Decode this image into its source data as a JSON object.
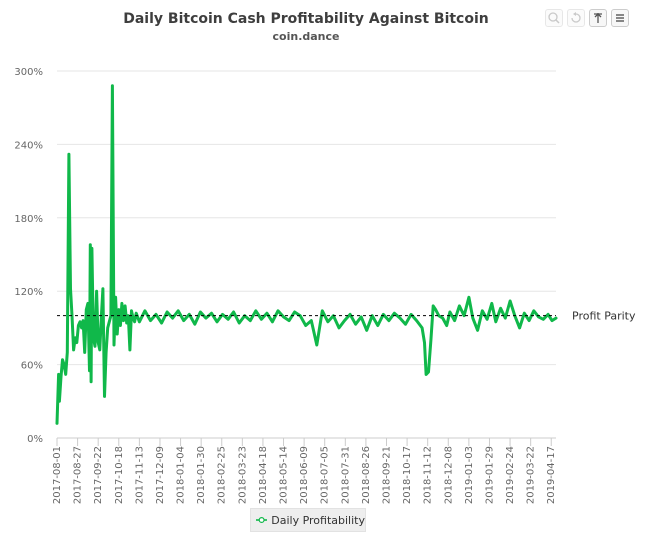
{
  "header": {
    "title": "Daily Bitcoin Cash Profitability Against Bitcoin",
    "subtitle": "coin.dance"
  },
  "toolbar": {
    "buttons": [
      {
        "icon": "zoom-in-icon",
        "enabled": false
      },
      {
        "icon": "reset-zoom-icon",
        "enabled": false
      },
      {
        "icon": "pan-icon",
        "enabled": true
      },
      {
        "icon": "menu-icon",
        "enabled": true
      }
    ]
  },
  "legend": {
    "label": "Daily Profitability",
    "color": "#10b84a"
  },
  "chart_data": {
    "type": "line",
    "title": "Daily Bitcoin Cash Profitability Against Bitcoin",
    "subtitle": "coin.dance",
    "xlabel": "",
    "ylabel": "",
    "ylim": [
      0,
      300
    ],
    "y_ticks": [
      0,
      60,
      120,
      180,
      240,
      300
    ],
    "y_tick_labels": [
      "0%",
      "60%",
      "120%",
      "180%",
      "240%",
      "300%"
    ],
    "x_ticks": [
      "2017-08-01",
      "2017-08-27",
      "2017-09-22",
      "2017-10-18",
      "2017-11-13",
      "2017-12-09",
      "2018-01-04",
      "2018-01-30",
      "2018-02-25",
      "2018-03-23",
      "2018-04-18",
      "2018-05-14",
      "2018-06-09",
      "2018-07-05",
      "2018-07-31",
      "2018-08-26",
      "2018-09-21",
      "2018-10-17",
      "2018-11-12",
      "2018-12-08",
      "2019-01-03",
      "2019-01-29",
      "2019-02-24",
      "2019-03-22",
      "2019-04-17"
    ],
    "x_start": "2017-08-01",
    "x_end": "2019-04-23",
    "grid": true,
    "legend_position": "bottom-center",
    "plot_line": {
      "value": 100,
      "label": "Profit Parity",
      "style": "dashed"
    },
    "series": [
      {
        "name": "Daily Profitability",
        "color": "#10b84a",
        "points": [
          [
            "2017-08-01",
            12
          ],
          [
            "2017-08-03",
            52
          ],
          [
            "2017-08-04",
            30
          ],
          [
            "2017-08-06",
            50
          ],
          [
            "2017-08-08",
            64
          ],
          [
            "2017-08-10",
            60
          ],
          [
            "2017-08-12",
            52
          ],
          [
            "2017-08-14",
            70
          ],
          [
            "2017-08-16",
            232
          ],
          [
            "2017-08-18",
            122
          ],
          [
            "2017-08-20",
            100
          ],
          [
            "2017-08-22",
            72
          ],
          [
            "2017-08-24",
            82
          ],
          [
            "2017-08-26",
            78
          ],
          [
            "2017-08-28",
            92
          ],
          [
            "2017-08-30",
            95
          ],
          [
            "2017-09-01",
            90
          ],
          [
            "2017-09-03",
            96
          ],
          [
            "2017-09-05",
            70
          ],
          [
            "2017-09-07",
            105
          ],
          [
            "2017-09-09",
            110
          ],
          [
            "2017-09-11",
            55
          ],
          [
            "2017-09-12",
            158
          ],
          [
            "2017-09-13",
            46
          ],
          [
            "2017-09-14",
            155
          ],
          [
            "2017-09-16",
            82
          ],
          [
            "2017-09-18",
            75
          ],
          [
            "2017-09-20",
            120
          ],
          [
            "2017-09-22",
            78
          ],
          [
            "2017-09-24",
            72
          ],
          [
            "2017-09-26",
            100
          ],
          [
            "2017-09-28",
            122
          ],
          [
            "2017-09-30",
            34
          ],
          [
            "2017-10-02",
            70
          ],
          [
            "2017-10-04",
            90
          ],
          [
            "2017-10-06",
            95
          ],
          [
            "2017-10-08",
            100
          ],
          [
            "2017-10-10",
            288
          ],
          [
            "2017-10-12",
            76
          ],
          [
            "2017-10-14",
            115
          ],
          [
            "2017-10-16",
            85
          ],
          [
            "2017-10-18",
            105
          ],
          [
            "2017-10-20",
            92
          ],
          [
            "2017-10-22",
            110
          ],
          [
            "2017-10-24",
            96
          ],
          [
            "2017-10-26",
            108
          ],
          [
            "2017-10-28",
            94
          ],
          [
            "2017-10-30",
            100
          ],
          [
            "2017-11-01",
            72
          ],
          [
            "2017-11-03",
            104
          ],
          [
            "2017-11-05",
            98
          ],
          [
            "2017-11-07",
            95
          ],
          [
            "2017-11-09",
            102
          ],
          [
            "2017-11-13",
            95
          ],
          [
            "2017-11-20",
            104
          ],
          [
            "2017-11-27",
            96
          ],
          [
            "2017-12-04",
            101
          ],
          [
            "2017-12-11",
            94
          ],
          [
            "2017-12-18",
            103
          ],
          [
            "2017-12-25",
            98
          ],
          [
            "2018-01-01",
            104
          ],
          [
            "2018-01-08",
            96
          ],
          [
            "2018-01-15",
            101
          ],
          [
            "2018-01-22",
            93
          ],
          [
            "2018-01-29",
            103
          ],
          [
            "2018-02-05",
            98
          ],
          [
            "2018-02-12",
            102
          ],
          [
            "2018-02-19",
            95
          ],
          [
            "2018-02-26",
            101
          ],
          [
            "2018-03-05",
            97
          ],
          [
            "2018-03-12",
            103
          ],
          [
            "2018-03-19",
            94
          ],
          [
            "2018-03-26",
            100
          ],
          [
            "2018-04-02",
            96
          ],
          [
            "2018-04-09",
            104
          ],
          [
            "2018-04-16",
            97
          ],
          [
            "2018-04-23",
            102
          ],
          [
            "2018-04-30",
            95
          ],
          [
            "2018-05-07",
            104
          ],
          [
            "2018-05-14",
            99
          ],
          [
            "2018-05-21",
            96
          ],
          [
            "2018-05-28",
            103
          ],
          [
            "2018-06-04",
            100
          ],
          [
            "2018-06-11",
            92
          ],
          [
            "2018-06-18",
            96
          ],
          [
            "2018-06-25",
            76
          ],
          [
            "2018-07-02",
            104
          ],
          [
            "2018-07-09",
            95
          ],
          [
            "2018-07-16",
            100
          ],
          [
            "2018-07-23",
            90
          ],
          [
            "2018-07-30",
            96
          ],
          [
            "2018-08-06",
            101
          ],
          [
            "2018-08-13",
            93
          ],
          [
            "2018-08-20",
            99
          ],
          [
            "2018-08-27",
            88
          ],
          [
            "2018-09-03",
            100
          ],
          [
            "2018-09-10",
            92
          ],
          [
            "2018-09-17",
            101
          ],
          [
            "2018-09-24",
            96
          ],
          [
            "2018-10-01",
            102
          ],
          [
            "2018-10-08",
            98
          ],
          [
            "2018-10-15",
            93
          ],
          [
            "2018-10-22",
            101
          ],
          [
            "2018-10-29",
            96
          ],
          [
            "2018-11-05",
            90
          ],
          [
            "2018-11-08",
            78
          ],
          [
            "2018-11-10",
            52
          ],
          [
            "2018-11-13",
            54
          ],
          [
            "2018-11-16",
            80
          ],
          [
            "2018-11-19",
            108
          ],
          [
            "2018-11-22",
            105
          ],
          [
            "2018-11-26",
            100
          ],
          [
            "2018-12-01",
            98
          ],
          [
            "2018-12-06",
            92
          ],
          [
            "2018-12-10",
            103
          ],
          [
            "2018-12-16",
            96
          ],
          [
            "2018-12-22",
            108
          ],
          [
            "2018-12-28",
            100
          ],
          [
            "2019-01-03",
            115
          ],
          [
            "2019-01-08",
            98
          ],
          [
            "2019-01-14",
            88
          ],
          [
            "2019-01-20",
            104
          ],
          [
            "2019-01-26",
            97
          ],
          [
            "2019-02-01",
            110
          ],
          [
            "2019-02-06",
            95
          ],
          [
            "2019-02-12",
            106
          ],
          [
            "2019-02-18",
            98
          ],
          [
            "2019-02-24",
            112
          ],
          [
            "2019-03-02",
            100
          ],
          [
            "2019-03-08",
            90
          ],
          [
            "2019-03-14",
            102
          ],
          [
            "2019-03-20",
            96
          ],
          [
            "2019-03-26",
            104
          ],
          [
            "2019-04-01",
            99
          ],
          [
            "2019-04-07",
            97
          ],
          [
            "2019-04-13",
            101
          ],
          [
            "2019-04-18",
            96
          ],
          [
            "2019-04-23",
            98
          ]
        ]
      }
    ]
  }
}
